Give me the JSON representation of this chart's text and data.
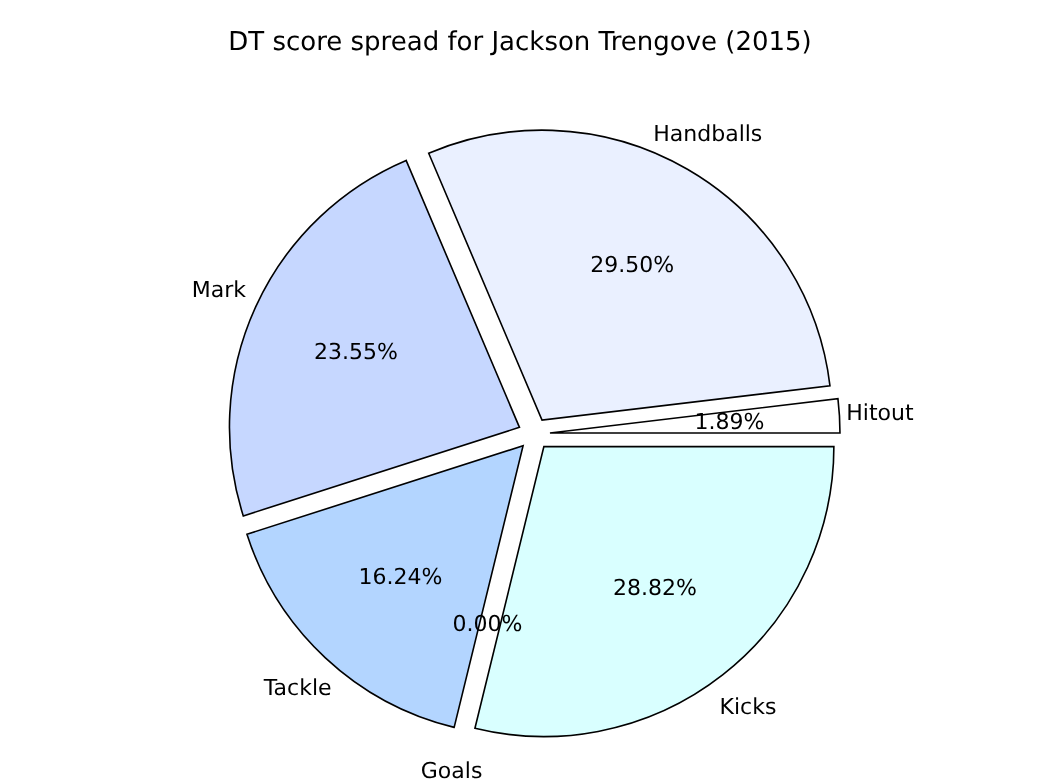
{
  "chart_data": {
    "type": "pie",
    "title": "DT score spread for Jackson Trengove (2015)",
    "categories": [
      "Hitout",
      "Handballs",
      "Mark",
      "Tackle",
      "Goals",
      "Kicks"
    ],
    "values": [
      1.89,
      29.5,
      23.55,
      16.24,
      0,
      28.82
    ],
    "value_labels": [
      "1.89%",
      "29.50%",
      "23.55%",
      "16.24%",
      "0.00%",
      "28.82%"
    ],
    "colors": [
      "#ffffff",
      "#eaf0ff",
      "#c6d7ff",
      "#b3d5ff",
      "#a8c8ff",
      "#d9ffff"
    ],
    "legend": false
  }
}
